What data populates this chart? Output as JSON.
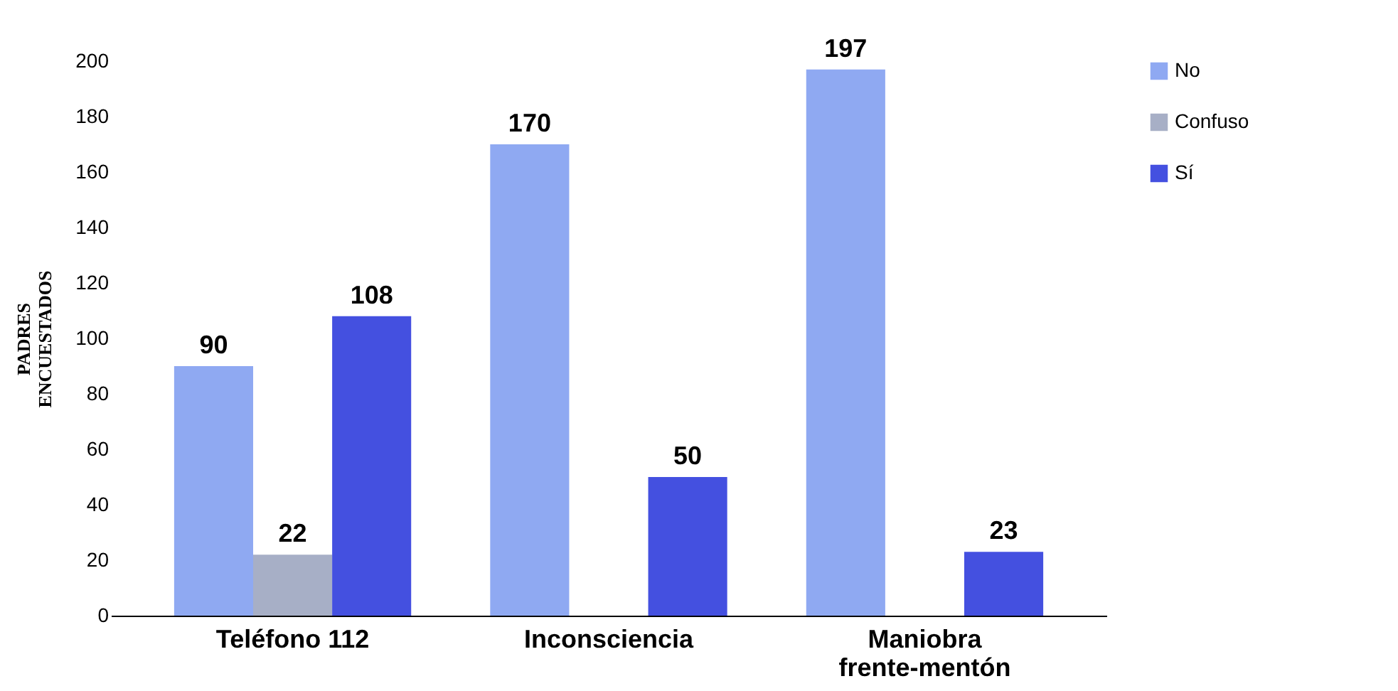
{
  "chart_data": {
    "type": "bar",
    "ylabel": "PADRES ENCUESTADOS",
    "categories": [
      "Teléfono 112",
      "Inconsciencia",
      "Maniobra frente-mentón"
    ],
    "series": [
      {
        "name": "No",
        "color": "#8fa9f2",
        "values": [
          90,
          170,
          197
        ]
      },
      {
        "name": "Confuso",
        "color": "#a7afc6",
        "values": [
          22,
          null,
          null
        ]
      },
      {
        "name": "Sí",
        "color": "#4450e0",
        "values": [
          108,
          50,
          23
        ]
      }
    ],
    "ylim": [
      0,
      200
    ],
    "yticks": [
      0,
      20,
      40,
      60,
      80,
      100,
      120,
      140,
      160,
      180,
      200
    ],
    "grid": false,
    "legend": "right",
    "data_labels": true
  }
}
